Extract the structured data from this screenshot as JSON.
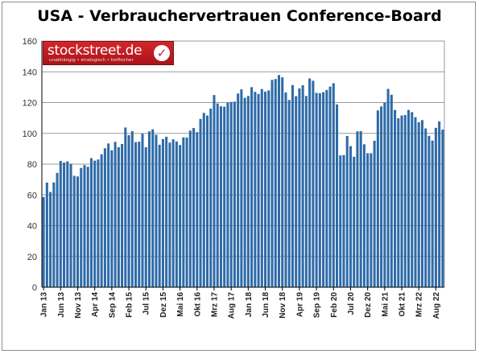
{
  "chart_data": {
    "type": "bar",
    "title": "USA - Verbrauchervertrauen Conference-Board",
    "ylim": [
      0,
      160
    ],
    "y_ticks": [
      0,
      20,
      40,
      60,
      80,
      100,
      120,
      140,
      160
    ],
    "grid": true,
    "bar_color": "#2e6ba8",
    "x_tick_labels": [
      "Jan 13",
      "Jun 13",
      "Nov 13",
      "Apr 14",
      "Sep 14",
      "Feb 15",
      "Jul 15",
      "Dez 15",
      "Mai 16",
      "Okt 16",
      "Mrz 17",
      "Aug 17",
      "Jan 18",
      "Jun 18",
      "Nov 18",
      "Apr 19",
      "Sep 19",
      "Feb 20",
      "Jul 20",
      "Dez 20",
      "Mai 21",
      "Okt 21",
      "Mrz 22",
      "Aug 22"
    ],
    "categories": [
      "Jan 13",
      "Feb 13",
      "Mrz 13",
      "Apr 13",
      "Mai 13",
      "Jun 13",
      "Jul 13",
      "Aug 13",
      "Sep 13",
      "Okt 13",
      "Nov 13",
      "Dez 13",
      "Jan 14",
      "Feb 14",
      "Mrz 14",
      "Apr 14",
      "Mai 14",
      "Jun 14",
      "Jul 14",
      "Aug 14",
      "Sep 14",
      "Okt 14",
      "Nov 14",
      "Dez 14",
      "Jan 15",
      "Feb 15",
      "Mrz 15",
      "Apr 15",
      "Mai 15",
      "Jun 15",
      "Jul 15",
      "Aug 15",
      "Sep 15",
      "Okt 15",
      "Nov 15",
      "Dez 15",
      "Jan 16",
      "Feb 16",
      "Mrz 16",
      "Apr 16",
      "Mai 16",
      "Jun 16",
      "Jul 16",
      "Aug 16",
      "Sep 16",
      "Okt 16",
      "Nov 16",
      "Dez 16",
      "Jan 17",
      "Feb 17",
      "Mrz 17",
      "Apr 17",
      "Mai 17",
      "Jun 17",
      "Jul 17",
      "Aug 17",
      "Sep 17",
      "Okt 17",
      "Nov 17",
      "Dez 17",
      "Jan 18",
      "Feb 18",
      "Mrz 18",
      "Apr 18",
      "Mai 18",
      "Jun 18",
      "Jul 18",
      "Aug 18",
      "Sep 18",
      "Okt 18",
      "Nov 18",
      "Dez 18",
      "Jan 19",
      "Feb 19",
      "Mrz 19",
      "Apr 19",
      "Mai 19",
      "Jun 19",
      "Jul 19",
      "Aug 19",
      "Sep 19",
      "Okt 19",
      "Nov 19",
      "Dez 19",
      "Jan 20",
      "Feb 20",
      "Mrz 20",
      "Apr 20",
      "Mai 20",
      "Jun 20",
      "Jul 20",
      "Aug 20",
      "Sep 20",
      "Okt 20",
      "Nov 20",
      "Dez 20",
      "Jan 21",
      "Feb 21",
      "Mrz 21",
      "Apr 21",
      "Mai 21",
      "Jun 21",
      "Jul 21",
      "Aug 21",
      "Sep 21",
      "Okt 21",
      "Nov 21",
      "Dez 21",
      "Jan 22",
      "Feb 22",
      "Mrz 22",
      "Apr 22",
      "Mai 22",
      "Jun 22",
      "Jul 22",
      "Aug 22",
      "Sep 22",
      "Okt 22"
    ],
    "values": [
      58.6,
      68.0,
      61.9,
      68.1,
      74.3,
      82.1,
      81.0,
      81.8,
      80.2,
      72.4,
      72.0,
      77.5,
      79.4,
      78.3,
      83.9,
      82.3,
      83.0,
      86.4,
      90.3,
      93.4,
      89.0,
      94.5,
      91.0,
      93.1,
      103.8,
      98.8,
      101.4,
      94.3,
      94.6,
      99.8,
      91.0,
      101.3,
      102.6,
      99.1,
      92.6,
      96.3,
      97.8,
      94.0,
      96.1,
      94.7,
      92.4,
      97.4,
      97.3,
      101.8,
      103.5,
      100.8,
      109.4,
      113.3,
      111.6,
      116.1,
      124.9,
      119.4,
      117.6,
      117.3,
      120.0,
      120.4,
      120.6,
      125.9,
      128.6,
      123.1,
      124.3,
      130.0,
      127.0,
      125.6,
      128.8,
      127.1,
      127.9,
      134.7,
      135.3,
      137.9,
      136.4,
      126.6,
      121.7,
      131.4,
      124.2,
      129.2,
      131.3,
      124.3,
      135.7,
      134.2,
      126.3,
      126.1,
      126.8,
      128.2,
      130.4,
      132.6,
      118.8,
      85.7,
      85.9,
      98.3,
      91.7,
      84.8,
      101.3,
      101.4,
      92.9,
      87.1,
      87.1,
      95.2,
      114.9,
      117.5,
      120.0,
      128.9,
      125.1,
      115.2,
      109.8,
      111.6,
      111.9,
      115.2,
      113.8,
      110.5,
      107.2,
      108.6,
      103.2,
      98.4,
      95.3,
      103.6,
      107.8,
      102.5
    ]
  },
  "branding": {
    "logo_name": "stockstreet.de",
    "logo_tagline": "unabhängig • strategisch • treffsicher",
    "logo_check": "✓"
  }
}
